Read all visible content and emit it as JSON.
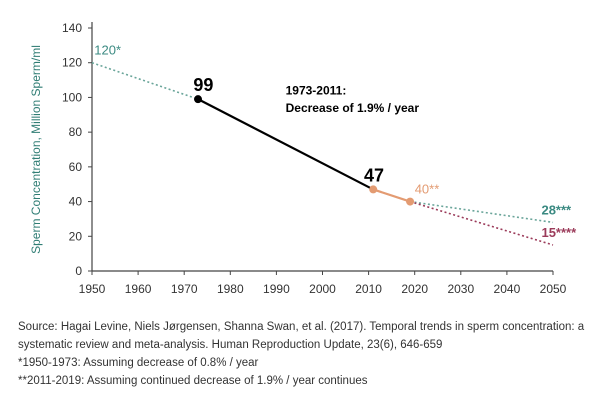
{
  "chart_data": {
    "type": "line",
    "ylabel": "Sperm Concentration, Million Sperm/ml",
    "xlabel": "",
    "xlim": [
      1950,
      2050
    ],
    "ylim": [
      0,
      140
    ],
    "x_ticks": [
      1950,
      1960,
      1970,
      1980,
      1990,
      2000,
      2010,
      2020,
      2030,
      2040,
      2050
    ],
    "y_ticks": [
      0,
      20,
      40,
      60,
      80,
      100,
      120,
      140
    ],
    "grid": false,
    "series": [
      {
        "name": "",
        "style": "dotted",
        "color": "#6aa59a",
        "points": [
          [
            1950,
            120
          ],
          [
            1973,
            99
          ]
        ]
      },
      {
        "name": "",
        "style": "solid",
        "color": "#000000",
        "points": [
          [
            1973,
            99
          ],
          [
            2011,
            47
          ]
        ]
      },
      {
        "name": "",
        "style": "solid",
        "color": "#e39b72",
        "points": [
          [
            2011,
            47
          ],
          [
            2019,
            40
          ]
        ]
      },
      {
        "name": "",
        "style": "dotted",
        "color": "#6aa59a",
        "points": [
          [
            2019,
            40
          ],
          [
            2050,
            28
          ]
        ]
      },
      {
        "name": "",
        "style": "dotted",
        "color": "#9b3b5a",
        "points": [
          [
            2019,
            40
          ],
          [
            2050,
            15
          ]
        ]
      }
    ],
    "markers": [
      {
        "x": 1973,
        "y": 99,
        "color": "#000000"
      },
      {
        "x": 2011,
        "y": 47,
        "color": "#e39b72"
      },
      {
        "x": 2019,
        "y": 40,
        "color": "#e39b72"
      }
    ],
    "annotations": [
      {
        "text": "120*",
        "x": 1950.5,
        "y": 120,
        "color": "#3b8a82",
        "size": 13,
        "weight": "normal"
      },
      {
        "text": "99",
        "x": 1972,
        "y": 99,
        "color": "#000000",
        "size": 18,
        "weight": "bold"
      },
      {
        "text": "1973-2011:",
        "x": 1992,
        "y": 97,
        "color": "#000000",
        "size": 12,
        "weight": "bold"
      },
      {
        "text": "Decrease of 1.9% / year",
        "x": 1992,
        "y": 87,
        "color": "#000000",
        "size": 12,
        "weight": "bold"
      },
      {
        "text": "47",
        "x": 2009,
        "y": 47,
        "color": "#000000",
        "size": 18,
        "weight": "bold"
      },
      {
        "text": "40**",
        "x": 2020,
        "y": 40,
        "color": "#e39b72",
        "size": 13,
        "weight": "normal"
      },
      {
        "text": "28***",
        "x": 2047.5,
        "y": 28,
        "color": "#3b8a82",
        "size": 13,
        "weight": "bold"
      },
      {
        "text": "15****",
        "x": 2047.5,
        "y": 15,
        "color": "#9b3b5a",
        "size": 13,
        "weight": "bold"
      }
    ]
  },
  "sources": {
    "line1": "Source: Hagai Levine, Niels Jørgensen, Shanna Swan, et al. (2017). Temporal trends in sperm concentration: a systematic review and meta-analysis. Human Reproduction Update, 23(6), 646-659",
    "line2": "*1950-1973: Assuming decrease of 0.8% / year",
    "line3": "**2011-2019: Assuming continued decrease of 1.9% / year continues"
  }
}
